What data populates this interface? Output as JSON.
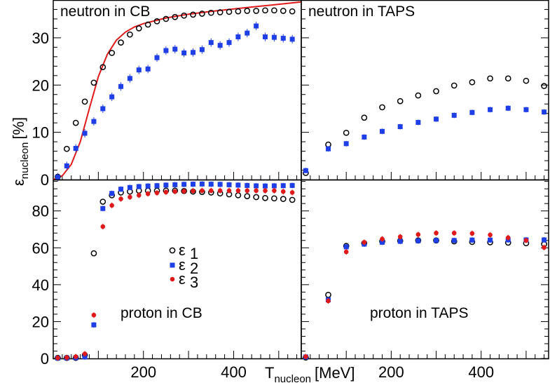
{
  "chart_data": {
    "type": "scatter",
    "ylabel": "ε",
    "ylabel_sub": "nucleon",
    "ylabel_unit": "[%]",
    "xlabel": "T",
    "xlabel_sub": "nucleon",
    "xlabel_unit": "[MeV]",
    "xlim": [
      0,
      550
    ],
    "x_ticks": [
      200,
      400
    ],
    "colors": {
      "eps1": "#000000",
      "eps2": "#1f3fe6",
      "eps3": "#e01a1a",
      "curve": "#e01a1a"
    },
    "legend": {
      "placement": "center-left of lower-left panel",
      "entries": [
        {
          "symbol": "ε",
          "sub": "1",
          "series": "eps1"
        },
        {
          "symbol": "ε",
          "sub": "2",
          "series": "eps2"
        },
        {
          "symbol": "ε",
          "sub": "3",
          "series": "eps3"
        }
      ]
    },
    "panels": [
      {
        "id": "neutron-cb",
        "label": "neutron in CB",
        "ylim": [
          0,
          38
        ],
        "y_ticks": [
          0,
          10,
          20,
          30
        ],
        "series": [
          {
            "name": "eps1",
            "marker": "open-circle",
            "x": [
              10,
              30,
              50,
              70,
              90,
              110,
              130,
              150,
              170,
              190,
              210,
              230,
              250,
              270,
              290,
              310,
              330,
              350,
              370,
              390,
              410,
              430,
              450,
              470,
              490,
              510,
              530
            ],
            "y": [
              0.6,
              6.5,
              12.0,
              16.5,
              20.5,
              23.8,
              26.8,
              29.0,
              30.7,
              32.0,
              32.8,
              33.5,
              34.0,
              34.4,
              34.7,
              34.9,
              35.1,
              35.3,
              35.4,
              35.5,
              35.6,
              35.7,
              35.7,
              35.8,
              35.8,
              35.7,
              35.6
            ]
          },
          {
            "name": "eps2",
            "marker": "filled-square",
            "x": [
              10,
              30,
              50,
              70,
              90,
              110,
              130,
              150,
              170,
              190,
              210,
              230,
              250,
              270,
              290,
              310,
              330,
              350,
              370,
              390,
              410,
              430,
              450,
              470,
              490,
              510,
              530
            ],
            "y": [
              0.5,
              2.9,
              6.6,
              9.8,
              12.3,
              15.0,
              17.5,
              19.7,
              21.4,
              23.2,
              23.4,
              25.8,
              27.3,
              27.6,
              26.8,
              26.9,
              27.5,
              29.0,
              28.4,
              29.0,
              30.2,
              31.0,
              32.5,
              30.2,
              30.1,
              29.9,
              29.7
            ]
          }
        ],
        "curve": {
          "x": [
            0,
            20,
            40,
            60,
            80,
            100,
            120,
            140,
            160,
            180,
            200,
            250,
            300,
            350,
            400,
            450,
            500,
            550
          ],
          "y": [
            0,
            0.8,
            3.2,
            8.0,
            15.0,
            21.8,
            26.5,
            29.5,
            31.2,
            32.3,
            33.0,
            34.2,
            35.0,
            35.6,
            36.1,
            36.6,
            37.1,
            37.6
          ]
        }
      },
      {
        "id": "neutron-taps",
        "label": "neutron in TAPS",
        "ylim": [
          0,
          38
        ],
        "y_ticks": [
          0,
          10,
          20,
          30
        ],
        "series": [
          {
            "name": "eps1",
            "marker": "open-circle",
            "x": [
              10,
              60,
              100,
              140,
              180,
              220,
              260,
              300,
              340,
              380,
              420,
              460,
              500,
              540
            ],
            "y": [
              1.4,
              7.4,
              9.9,
              13.1,
              15.3,
              16.6,
              17.8,
              18.7,
              19.9,
              20.6,
              21.4,
              21.4,
              20.9,
              19.8
            ]
          },
          {
            "name": "eps2",
            "marker": "filled-square",
            "x": [
              10,
              60,
              100,
              140,
              180,
              220,
              260,
              300,
              340,
              380,
              420,
              460,
              500,
              540
            ],
            "y": [
              1.9,
              6.5,
              7.6,
              9.0,
              10.2,
              11.2,
              12.1,
              12.8,
              13.6,
              14.2,
              14.8,
              15.1,
              14.8,
              14.3
            ]
          }
        ]
      },
      {
        "id": "proton-cb",
        "label": "proton in CB",
        "ylim": [
          0,
          97
        ],
        "y_ticks": [
          0,
          20,
          40,
          60,
          80
        ],
        "series": [
          {
            "name": "eps1",
            "marker": "open-circle",
            "x": [
              10,
              30,
              50,
              70,
              90,
              110,
              130,
              150,
              170,
              190,
              210,
              230,
              250,
              270,
              290,
              310,
              330,
              350,
              370,
              390,
              410,
              430,
              450,
              470,
              490,
              510,
              530
            ],
            "y": [
              0.3,
              0.3,
              0.3,
              1.8,
              57.0,
              85.0,
              88.5,
              90.0,
              90.5,
              91.0,
              91.0,
              91.0,
              91.0,
              91.0,
              90.8,
              90.5,
              90.3,
              90.0,
              89.5,
              89.0,
              88.5,
              88.0,
              87.5,
              87.0,
              86.8,
              86.5,
              86.0
            ]
          },
          {
            "name": "eps2",
            "marker": "filled-square",
            "x": [
              10,
              30,
              50,
              70,
              90,
              110,
              130,
              150,
              170,
              190,
              210,
              230,
              250,
              270,
              290,
              310,
              330,
              350,
              370,
              390,
              410,
              430,
              450,
              470,
              490,
              510,
              530
            ],
            "y": [
              0.2,
              0.3,
              0.4,
              0.8,
              18.2,
              81.3,
              89.5,
              91.8,
              92.7,
              93.2,
              93.5,
              93.7,
              94.0,
              94.2,
              94.4,
              94.5,
              94.6,
              94.5,
              94.4,
              94.2,
              94.0,
              93.8,
              93.6,
              93.5,
              93.6,
              93.7,
              93.8
            ]
          },
          {
            "name": "eps3",
            "marker": "filled-circle",
            "x": [
              10,
              30,
              50,
              70,
              90,
              110,
              130,
              150,
              170,
              190,
              210,
              230,
              250,
              270,
              290,
              310,
              330,
              350,
              370,
              390,
              410,
              430,
              450,
              470,
              490,
              510,
              530
            ],
            "y": [
              0.3,
              0.5,
              1.0,
              2.5,
              23.5,
              71.5,
              83.0,
              86.5,
              87.5,
              88.5,
              89.3,
              89.8,
              90.2,
              90.5,
              90.7,
              90.9,
              91.0,
              91.0,
              91.0,
              91.0,
              91.0,
              91.0,
              91.0,
              91.0,
              91.0,
              90.5,
              90.0
            ]
          }
        ]
      },
      {
        "id": "proton-taps",
        "label": "proton in TAPS",
        "ylim": [
          0,
          97
        ],
        "y_ticks": [
          0,
          20,
          40,
          60,
          80
        ],
        "series": [
          {
            "name": "eps1",
            "marker": "open-circle",
            "x": [
              10,
              60,
              100,
              140,
              180,
              220,
              260,
              300,
              340,
              380,
              420,
              460,
              500,
              540
            ],
            "y": [
              0.5,
              34.5,
              61.0,
              62.5,
              63.5,
              63.8,
              64.0,
              64.0,
              63.5,
              63.2,
              63.0,
              62.8,
              62.5,
              62.0
            ]
          },
          {
            "name": "eps2",
            "marker": "filled-square",
            "x": [
              10,
              60,
              100,
              140,
              180,
              220,
              260,
              300,
              340,
              380,
              420,
              460,
              500,
              540
            ],
            "y": [
              0.8,
              31.8,
              60.5,
              62.0,
              63.0,
              63.5,
              63.8,
              64.0,
              64.0,
              64.2,
              64.2,
              64.3,
              64.3,
              64.3
            ]
          },
          {
            "name": "eps3",
            "marker": "filled-circle",
            "x": [
              10,
              60,
              100,
              140,
              180,
              220,
              260,
              300,
              340,
              380,
              420,
              460,
              500,
              540
            ],
            "y": [
              1.0,
              31.2,
              57.8,
              63.0,
              64.8,
              66.0,
              67.2,
              68.0,
              68.0,
              67.8,
              67.0,
              65.5,
              64.0,
              60.2
            ]
          }
        ]
      }
    ]
  }
}
